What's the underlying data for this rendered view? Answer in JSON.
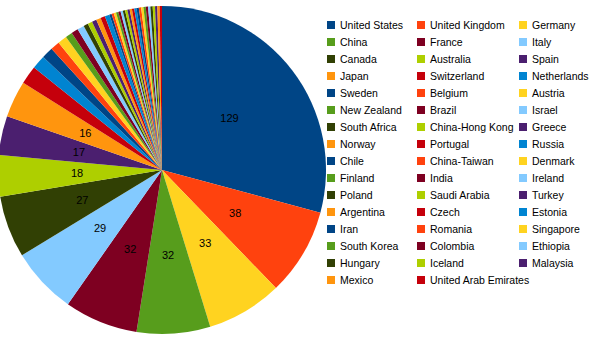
{
  "chart_data": {
    "type": "pie",
    "categories": [
      "United States",
      "United Kingdom",
      "Germany",
      "China",
      "France",
      "Italy",
      "Canada",
      "Australia",
      "Spain",
      "Japan",
      "Switzerland",
      "Netherlands",
      "Sweden",
      "Belgium",
      "Austria",
      "New Zealand",
      "Brazil",
      "Israel",
      "South Africa",
      "China-Hong Kong",
      "Greece",
      "Norway",
      "Portugal",
      "Russia",
      "Chile",
      "China-Taiwan",
      "Denmark",
      "Finland",
      "India",
      "Ireland",
      "Poland",
      "Saudi Arabia",
      "Turkey",
      "Argentina",
      "Czech",
      "Estonia",
      "Iran",
      "Romania",
      "Singapore",
      "South Korea",
      "Colombia",
      "Ethiopia",
      "Hungary",
      "Iceland",
      "Malaysia",
      "Mexico",
      "United Arab Emirates"
    ],
    "values": [
      129,
      38,
      33,
      32,
      32,
      29,
      27,
      18,
      17,
      16,
      8,
      6,
      5,
      4,
      4,
      3,
      3,
      3,
      2,
      2,
      2,
      2,
      2,
      2,
      1,
      1,
      1,
      1,
      1,
      1,
      1,
      1,
      1,
      1,
      1,
      1,
      1,
      1,
      1,
      1,
      1,
      1,
      1,
      1,
      1,
      1,
      1
    ],
    "value_labels": [
      "129",
      "38",
      "33",
      "32",
      "32",
      "29",
      "27",
      "18",
      "17",
      "16",
      null,
      null,
      null,
      null,
      null,
      null,
      null,
      null,
      null,
      null,
      null,
      null,
      null,
      null,
      null,
      null,
      null,
      null,
      null,
      null,
      null,
      null,
      null,
      null,
      null,
      null,
      null,
      null,
      null,
      null,
      null,
      null,
      null,
      null,
      null,
      null,
      null
    ],
    "colors": [
      "#004586",
      "#ff420e",
      "#ffd320",
      "#579d1c",
      "#7e0021",
      "#83caff",
      "#314004",
      "#aecf00",
      "#4b1f6f",
      "#ff950e",
      "#c5000b",
      "#0084d1",
      "#004586",
      "#ff420e",
      "#ffd320",
      "#579d1c",
      "#7e0021",
      "#83caff",
      "#314004",
      "#aecf00",
      "#4b1f6f",
      "#ff950e",
      "#c5000b",
      "#0084d1",
      "#004586",
      "#ff420e",
      "#ffd320",
      "#579d1c",
      "#7e0021",
      "#83caff",
      "#314004",
      "#aecf00",
      "#4b1f6f",
      "#ff950e",
      "#c5000b",
      "#0084d1",
      "#004586",
      "#ff420e",
      "#ffd320",
      "#579d1c",
      "#7e0021",
      "#83caff",
      "#314004",
      "#aecf00",
      "#4b1f6f",
      "#ff950e",
      "#c5000b"
    ],
    "data_labels": true,
    "legend": "right"
  }
}
